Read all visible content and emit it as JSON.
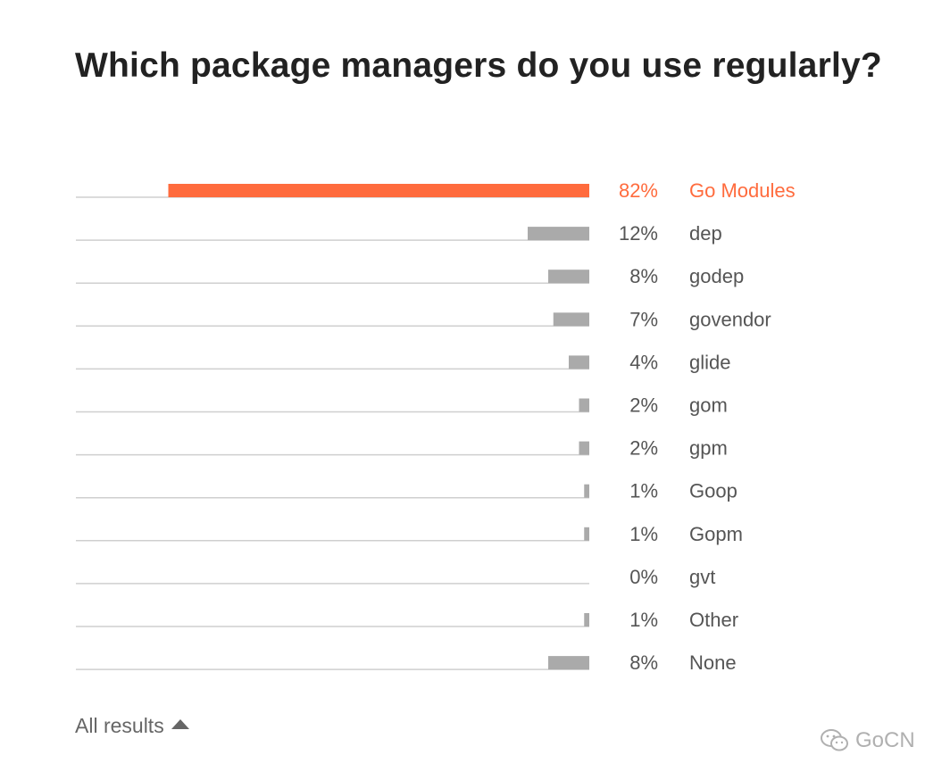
{
  "chart_data": {
    "type": "bar",
    "orientation": "horizontal",
    "title": "Which package managers do you use regularly?",
    "categories": [
      "Go Modules",
      "dep",
      "godep",
      "govendor",
      "glide",
      "gom",
      "gpm",
      "Goop",
      "Gopm",
      "gvt",
      "Other",
      "None"
    ],
    "values": [
      82,
      12,
      8,
      7,
      4,
      2,
      2,
      1,
      1,
      0,
      1,
      8
    ],
    "value_labels": [
      "82%",
      "12%",
      "8%",
      "7%",
      "4%",
      "2%",
      "2%",
      "1%",
      "1%",
      "0%",
      "1%",
      "8%"
    ],
    "unit": "%",
    "xlim": [
      0,
      100
    ],
    "highlight_index": 0,
    "colors": {
      "highlight": "#ff6b3d",
      "bar": "#aaaaaa",
      "baseline": "#cfcfcf",
      "label": "#555555"
    }
  },
  "footer": {
    "all_results_label": "All results",
    "toggle_icon": "triangle-up-icon"
  },
  "watermark": {
    "text": "GoCN",
    "icon": "wechat-icon"
  }
}
